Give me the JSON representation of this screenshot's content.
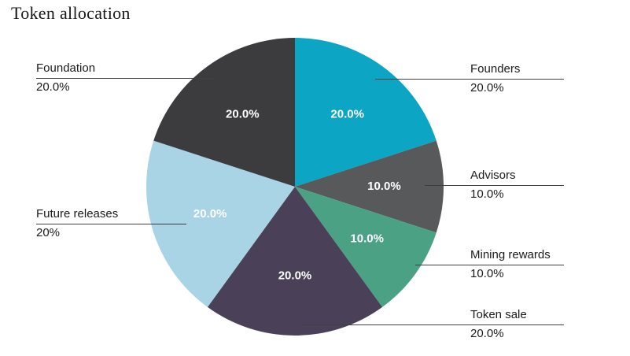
{
  "chart_data": {
    "type": "pie",
    "title": "Token allocation",
    "legend_position": "none",
    "grid": false,
    "slices": [
      {
        "label": "Founders",
        "value": 20.0,
        "pct_text": "20.0%",
        "inside_text": "20.0%",
        "color": "#0ca6c4"
      },
      {
        "label": "Advisors",
        "value": 10.0,
        "pct_text": "10.0%",
        "inside_text": "10.0%",
        "color": "#58595b"
      },
      {
        "label": "Mining rewards",
        "value": 10.0,
        "pct_text": "10.0%",
        "inside_text": "10.0%",
        "color": "#4ba183"
      },
      {
        "label": "Token sale",
        "value": 20.0,
        "pct_text": "20.0%",
        "inside_text": "20.0%",
        "color": "#4a4158"
      },
      {
        "label": "Future releases",
        "value": 20.0,
        "pct_text": "20%",
        "inside_text": "20.0%",
        "color": "#a9d4e5"
      },
      {
        "label": "Foundation",
        "value": 20.0,
        "pct_text": "20.0%",
        "inside_text": "20.0%",
        "color": "#3c3c3e"
      }
    ]
  }
}
